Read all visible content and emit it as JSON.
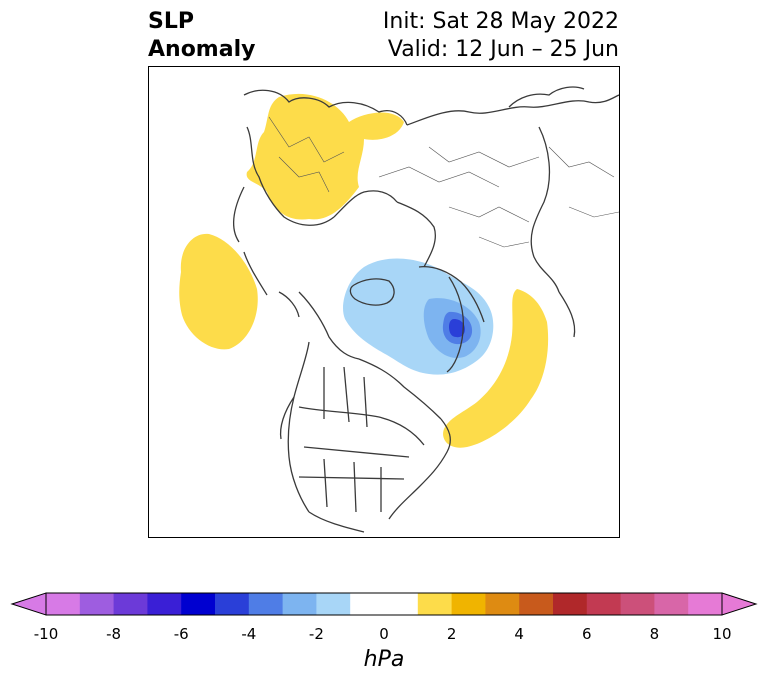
{
  "title": {
    "left_line1": "SLP",
    "left_line2": "Anomaly",
    "right_line1": "Init: Sat 28 May 2022",
    "right_line2": "Valid: 12 Jun – 25 Jun"
  },
  "colorbar": {
    "unit": "hPa",
    "ticks": [
      "-10",
      "-8",
      "-6",
      "-4",
      "-2",
      "0",
      "2",
      "4",
      "6",
      "8",
      "10"
    ],
    "colors": [
      "#d77ae6",
      "#9e5de0",
      "#6c3ad8",
      "#3a1fd6",
      "#0000d0",
      "#2a3fd8",
      "#4f7de6",
      "#7db4f0",
      "#a8d6f7",
      "#ffffff",
      "#ffffff",
      "#fddc4a",
      "#f0b400",
      "#de8b12",
      "#c85a1c",
      "#b0282a",
      "#c23a52",
      "#cc507a",
      "#d866a8",
      "#e67ad6"
    ]
  },
  "map": {
    "projection": "north-polar-stereographic",
    "anomalies": [
      {
        "region": "Scandinavia / Northern Europe",
        "sign": "positive",
        "level": "1-2 hPa"
      },
      {
        "region": "North Pacific",
        "sign": "positive",
        "level": "1-2 hPa"
      },
      {
        "region": "Canadian Arctic / Greenland",
        "sign": "negative",
        "level": "down to -4 hPa"
      },
      {
        "region": "North Atlantic off Newfoundland",
        "sign": "positive",
        "level": "1-2 hPa"
      }
    ]
  }
}
